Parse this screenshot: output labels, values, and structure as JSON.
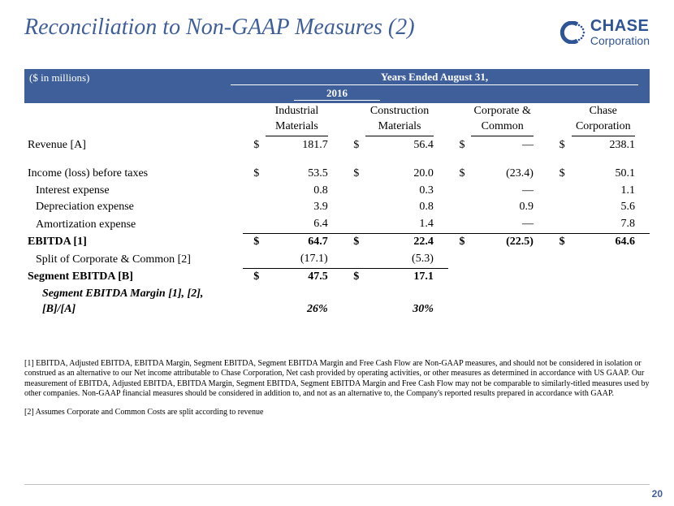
{
  "title": "Reconciliation to Non-GAAP Measures (2)",
  "logo": {
    "brand": "CHASE",
    "sub": "Corporation"
  },
  "header": {
    "units": "($ in millions)",
    "years_label": "Years Ended August 31,",
    "year": "2016"
  },
  "columns": [
    "Industrial Materials",
    "Construction Materials",
    "Corporate & Common",
    "Chase Corporation"
  ],
  "rows": [
    {
      "label": "Revenue [A]",
      "indent": 0,
      "currency": true,
      "vals": [
        "181.7",
        "56.4",
        "—",
        "238.1"
      ]
    }
  ],
  "rows2": [
    {
      "label": "Income (loss) before taxes",
      "indent": 0,
      "currency": true,
      "vals": [
        "53.5",
        "20.0",
        "(23.4)",
        "50.1"
      ]
    },
    {
      "label": "Interest expense",
      "indent": 1,
      "currency": false,
      "vals": [
        "0.8",
        "0.3",
        "—",
        "1.1"
      ]
    },
    {
      "label": "Depreciation expense",
      "indent": 1,
      "currency": false,
      "vals": [
        "3.9",
        "0.8",
        "0.9",
        "5.6"
      ]
    },
    {
      "label": "Amortization expense",
      "indent": 1,
      "currency": false,
      "vals": [
        "6.4",
        "1.4",
        "—",
        "7.8"
      ]
    },
    {
      "label": "EBITDA [1]",
      "indent": 0,
      "currency": true,
      "bold": true,
      "sumtop": true,
      "vals": [
        "64.7",
        "22.4",
        "(22.5)",
        "64.6"
      ]
    },
    {
      "label": "Split of Corporate & Common [2]",
      "indent": 1,
      "currency": false,
      "vals": [
        "(17.1)",
        "(5.3)",
        "",
        ""
      ]
    },
    {
      "label": "Segment EBITDA [B]",
      "indent": 0,
      "currency": true,
      "bold": true,
      "sumtop": true,
      "partial": 2,
      "vals": [
        "47.5",
        "17.1",
        "",
        ""
      ]
    },
    {
      "label": "Segment EBITDA Margin [1], [2], [B]/[A]",
      "indent": 2,
      "italic": true,
      "currency": false,
      "vals": [
        "26%",
        "30%",
        "",
        ""
      ]
    }
  ],
  "footnotes": [
    "[1] EBITDA, Adjusted EBITDA, EBITDA Margin, Segment EBITDA, Segment EBITDA Margin and Free Cash Flow are Non-GAAP measures, and should not be considered in isolation or construed as an alternative to our Net income attributable to Chase Corporation, Net cash provided by operating activities, or other measures as determined in accordance with US GAAP. Our measurement of EBITDA, Adjusted EBITDA, EBITDA Margin, Segment EBITDA, Segment EBITDA Margin and Free Cash Flow may not be comparable to similarly-titled measures used by other companies. Non-GAAP financial measures should be considered in addition to, and not as an alternative to, the Company's reported results prepared in accordance with GAAP.",
    "[2] Assumes Corporate and Common Costs are split according to revenue"
  ],
  "page_number": "20",
  "colors": {
    "brand_blue": "#3f5f9a",
    "logo_blue": "#2f5496",
    "text": "#000000",
    "bg": "#ffffff",
    "rule": "#bfbfbf"
  }
}
